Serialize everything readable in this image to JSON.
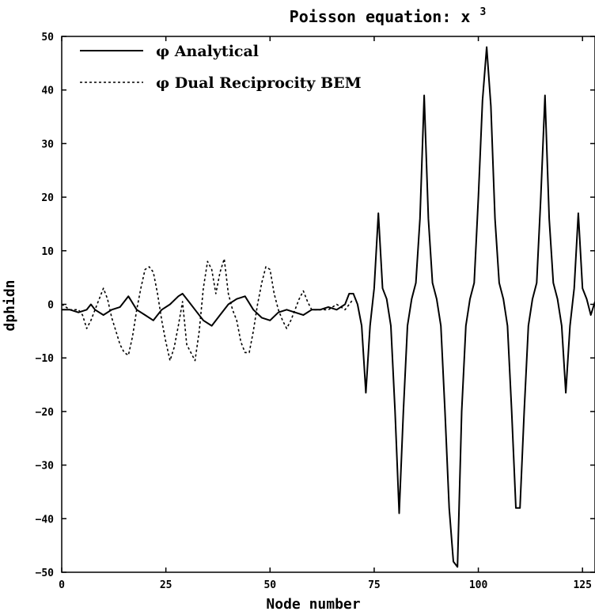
{
  "chart_data": {
    "type": "line",
    "title_main": "Poisson equation: x",
    "title_sup": "3",
    "xlabel": "Node number",
    "ylabel": "dphidn",
    "xlim": [
      0,
      128
    ],
    "ylim": [
      -50,
      50
    ],
    "xticks": [
      0,
      25,
      50,
      75,
      100,
      125
    ],
    "yticks": [
      50,
      40,
      30,
      20,
      10,
      0,
      -10,
      -20,
      -30,
      -40,
      -50
    ],
    "grid": false,
    "legend_position": "top-left",
    "series": [
      {
        "name": "φ Analytical",
        "style": "solid",
        "color": "#000000",
        "x": [
          0,
          2,
          4,
          6,
          7,
          8,
          10,
          12,
          14,
          16,
          18,
          20,
          22,
          24,
          26,
          28,
          29,
          30,
          32,
          34,
          36,
          38,
          40,
          42,
          44,
          46,
          48,
          50,
          52,
          54,
          56,
          58,
          60,
          62,
          64,
          66,
          68,
          69,
          70,
          71,
          72,
          73,
          74,
          75,
          76,
          77,
          78,
          79,
          80,
          81,
          82,
          83,
          84,
          85,
          86,
          87,
          88,
          89,
          90,
          91,
          92,
          93,
          94,
          95,
          96,
          97,
          98,
          99,
          100,
          101,
          102,
          103,
          104,
          105,
          106,
          107,
          108,
          109,
          110,
          111,
          112,
          113,
          114,
          115,
          116,
          117,
          118,
          119,
          120,
          121,
          122,
          123,
          124,
          125,
          126,
          127,
          128
        ],
        "y": [
          -1,
          -1,
          -1.5,
          -1,
          0,
          -1,
          -2,
          -1,
          -0.5,
          1.5,
          -1,
          -2,
          -3,
          -1,
          0,
          1.5,
          2,
          1,
          -1,
          -3,
          -4,
          -2,
          0,
          1,
          1.5,
          -1,
          -2.5,
          -3,
          -1.5,
          -1,
          -1.5,
          -2,
          -1,
          -1,
          -0.5,
          -1,
          0,
          2,
          2,
          0,
          -4,
          -16.5,
          -4,
          3,
          17,
          3,
          1,
          -4,
          -20,
          -39,
          -20,
          -4,
          1,
          4,
          16,
          39,
          16,
          4,
          1,
          -4,
          -20,
          -38,
          -48,
          -49,
          -20,
          -4,
          1,
          4,
          20,
          38,
          48,
          37,
          16,
          4,
          1,
          -4,
          -20,
          -38,
          -38,
          -20,
          -4,
          1,
          4,
          20,
          39,
          16,
          4,
          1,
          -4,
          -16.5,
          -4,
          3,
          17,
          3,
          1,
          -2,
          0.5
        ]
      },
      {
        "name": "φ Dual Reciprocity BEM",
        "style": "dotted",
        "color": "#000000",
        "x": [
          0,
          2,
          4,
          5,
          6,
          7,
          8,
          9,
          10,
          11,
          12,
          13,
          14,
          15,
          16,
          17,
          18,
          19,
          20,
          21,
          22,
          23,
          24,
          25,
          26,
          27,
          28,
          29,
          30,
          31,
          32,
          33,
          34,
          35,
          36,
          37,
          38,
          39,
          40,
          41,
          42,
          43,
          44,
          45,
          46,
          47,
          48,
          49,
          50,
          51,
          52,
          53,
          54,
          55,
          56,
          57,
          58,
          59,
          60,
          62,
          64,
          66,
          68,
          70
        ],
        "y": [
          0,
          -1,
          -1,
          -2,
          -4.5,
          -3,
          -1,
          1,
          3,
          1,
          -2.5,
          -5,
          -7.5,
          -9,
          -9.5,
          -6,
          -1,
          3,
          6.5,
          7,
          6,
          2,
          -3,
          -7,
          -10.5,
          -8,
          -4,
          0.5,
          -7.5,
          -9,
          -10.5,
          -5,
          3,
          8,
          6.5,
          2,
          6,
          8.5,
          2,
          -1,
          -3,
          -7,
          -9,
          -9,
          -5,
          0,
          4,
          7,
          6.5,
          2,
          -1,
          -3,
          -4.5,
          -3,
          -1,
          1,
          2.5,
          0.5,
          -1,
          -1,
          -1,
          0,
          -1,
          1
        ]
      }
    ]
  }
}
